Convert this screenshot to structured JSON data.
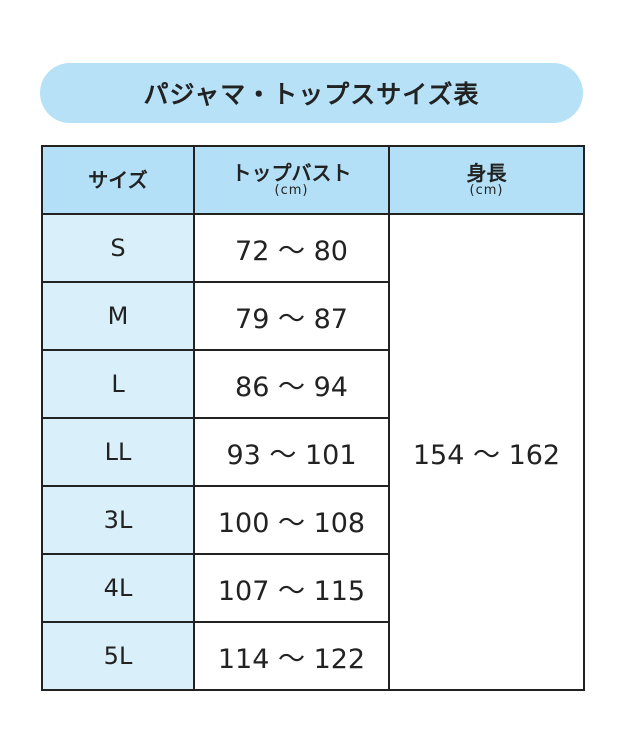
{
  "title": "パジャマ・トップスサイズ表",
  "headers": {
    "size": "サイズ",
    "bust": "トップバスト",
    "bust_unit": "(cm)",
    "height": "身長",
    "height_unit": "(cm)"
  },
  "rows": [
    {
      "size": "S",
      "bust": "72 〜 80"
    },
    {
      "size": "M",
      "bust": "79 〜 87"
    },
    {
      "size": "L",
      "bust": "86 〜 94"
    },
    {
      "size": "LL",
      "bust": "93 〜 101"
    },
    {
      "size": "3L",
      "bust": "100 〜 108"
    },
    {
      "size": "4L",
      "bust": "107 〜 115"
    },
    {
      "size": "5L",
      "bust": "114 〜 122"
    }
  ],
  "height_range": "154 〜 162",
  "colors": {
    "header_bg": "#b3e0f7",
    "size_col_bg": "#d9f0fb",
    "title_bg": "#b6e1f7"
  }
}
